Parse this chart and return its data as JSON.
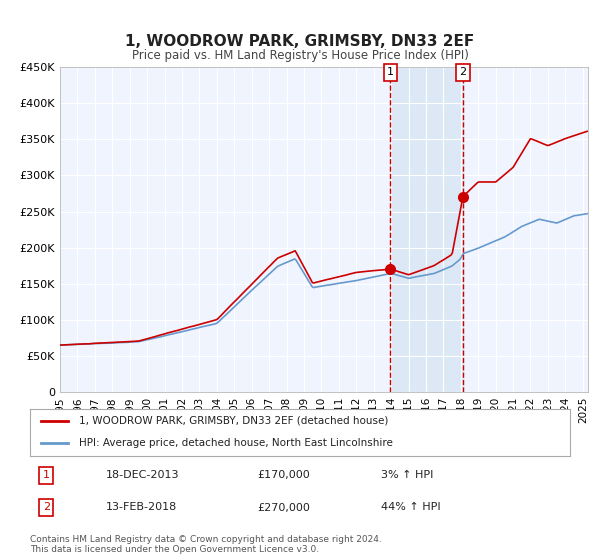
{
  "title": "1, WOODROW PARK, GRIMSBY, DN33 2EF",
  "subtitle": "Price paid vs. HM Land Registry's House Price Index (HPI)",
  "xlabel": "",
  "ylabel": "",
  "ylim": [
    0,
    450000
  ],
  "xlim_start": 1995.0,
  "xlim_end": 2025.3,
  "background_color": "#ffffff",
  "plot_bg_color": "#f0f4ff",
  "grid_color": "#ffffff",
  "red_line_color": "#cc0000",
  "blue_line_color": "#6699cc",
  "shade_color": "#dce8f5",
  "marker1_date": 2013.96,
  "marker1_value": 170000,
  "marker2_date": 2018.12,
  "marker2_value": 270000,
  "vline1_x": 2013.96,
  "vline2_x": 2018.12,
  "legend_line1": "1, WOODROW PARK, GRIMSBY, DN33 2EF (detached house)",
  "legend_line2": "HPI: Average price, detached house, North East Lincolnshire",
  "note1_label": "1",
  "note1_date": "18-DEC-2013",
  "note1_price": "£170,000",
  "note1_hpi": "3% ↑ HPI",
  "note2_label": "2",
  "note2_date": "13-FEB-2018",
  "note2_price": "£270,000",
  "note2_hpi": "44% ↑ HPI",
  "footer": "Contains HM Land Registry data © Crown copyright and database right 2024.\nThis data is licensed under the Open Government Licence v3.0.",
  "ytick_labels": [
    "0",
    "£50K",
    "£100K",
    "£150K",
    "£200K",
    "£250K",
    "£300K",
    "£350K",
    "£400K",
    "£450K"
  ],
  "ytick_values": [
    0,
    50000,
    100000,
    150000,
    200000,
    250000,
    300000,
    350000,
    400000,
    450000
  ]
}
